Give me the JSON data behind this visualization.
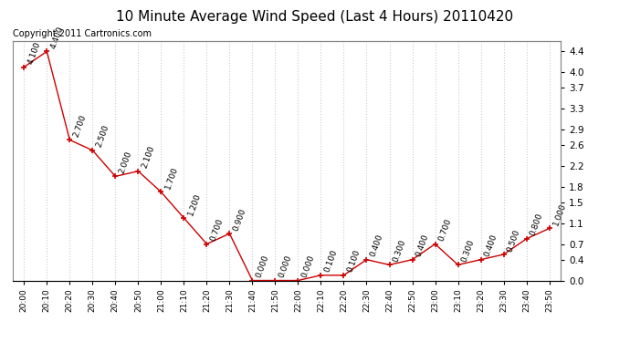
{
  "title": "10 Minute Average Wind Speed (Last 4 Hours) 20110420",
  "subtitle": "Copyright 2011 Cartronics.com",
  "x_labels": [
    "20:00",
    "20:10",
    "20:20",
    "20:30",
    "20:40",
    "20:50",
    "21:00",
    "21:10",
    "21:20",
    "21:30",
    "21:40",
    "21:50",
    "22:00",
    "22:10",
    "22:20",
    "22:30",
    "22:40",
    "22:50",
    "23:00",
    "23:10",
    "23:20",
    "23:30",
    "23:40",
    "23:50"
  ],
  "y_values": [
    4.1,
    4.4,
    2.7,
    2.5,
    2.0,
    2.1,
    1.7,
    1.2,
    0.7,
    0.9,
    0.0,
    0.0,
    0.0,
    0.1,
    0.1,
    0.4,
    0.3,
    0.4,
    0.7,
    0.3,
    0.4,
    0.5,
    0.8,
    1.0
  ],
  "annotations": [
    "4.100",
    "4.400",
    "2.700",
    "2.500",
    "2.000",
    "2.100",
    "1.700",
    "1.200",
    "0.700",
    "0.900",
    "0.000",
    "0.000",
    "0.000",
    "0.100",
    "0.100",
    "0.400",
    "0.300",
    "0.400",
    "0.700",
    "0.300",
    "0.400",
    "0.500",
    "0.800",
    "1.000"
  ],
  "line_color": "#cc0000",
  "marker_color": "#cc0000",
  "grid_color": "#cccccc",
  "background_color": "#ffffff",
  "plot_bg_color": "#ffffff",
  "y_right_ticks": [
    0.0,
    0.4,
    0.7,
    1.1,
    1.5,
    1.8,
    2.2,
    2.6,
    2.9,
    3.3,
    3.7,
    4.0,
    4.4
  ],
  "ylim": [
    0.0,
    4.6
  ],
  "title_fontsize": 11,
  "annotation_fontsize": 6.5,
  "subtitle_fontsize": 7
}
